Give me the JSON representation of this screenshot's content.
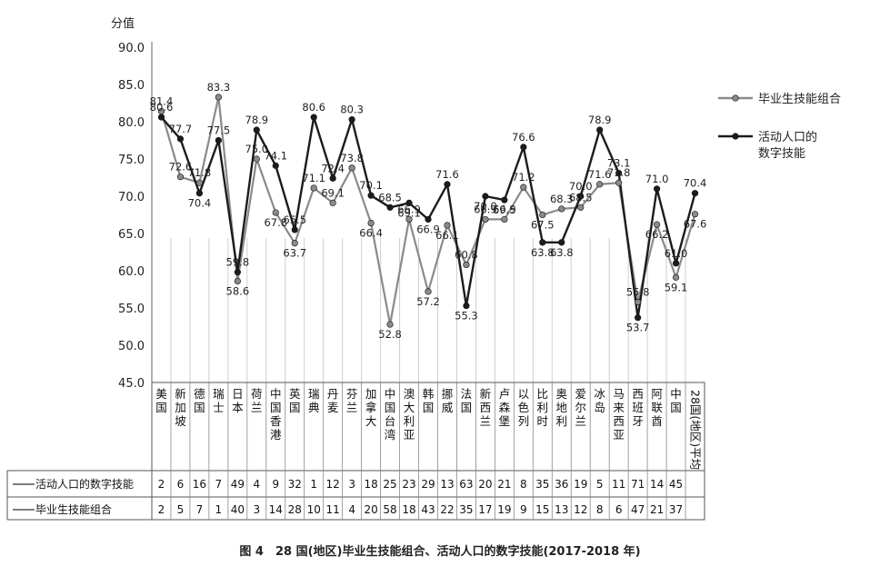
{
  "chart_data": {
    "type": "line",
    "title": "图 4　28 国(地区)毕业生技能组合、活动人口的数字技能(2017-2018 年)",
    "ylabel": "分值",
    "ylim": [
      45,
      90
    ],
    "yticks": [
      "45.0",
      "50.0",
      "55.0",
      "60.0",
      "65.0",
      "70.0",
      "75.0",
      "80.0",
      "85.0",
      "90.0"
    ],
    "categories": [
      "美国",
      "新加坡",
      "德国",
      "瑞士",
      "日本",
      "荷兰",
      "中国香港",
      "英国",
      "瑞典",
      "丹麦",
      "芬兰",
      "加拿大",
      "中国台湾",
      "澳大利亚",
      "韩国",
      "挪威",
      "法国",
      "新西兰",
      "卢森堡",
      "以色列",
      "比利时",
      "奥地利",
      "爱尔兰",
      "冰岛",
      "马来西亚",
      "西班牙",
      "阿联酋",
      "中国",
      "28国(地区)平均"
    ],
    "series": [
      {
        "name": "毕业生技能组合",
        "color": "#8a8a8a",
        "values": [
          81.4,
          72.6,
          71.8,
          83.3,
          58.6,
          75.0,
          67.8,
          63.7,
          71.1,
          69.1,
          73.8,
          66.4,
          52.8,
          66.9,
          57.2,
          66.1,
          60.8,
          66.9,
          66.9,
          71.2,
          67.5,
          68.3,
          68.5,
          71.6,
          71.8,
          55.8,
          66.2,
          59.1,
          67.6
        ],
        "labels": [
          "81.4",
          "72.6",
          "71.8",
          "83.3",
          "58.6",
          "75.0",
          "67.8",
          "63.7",
          "71.1",
          "69.1",
          "73.8",
          "66.4",
          "52.8",
          "66.9",
          "57.2",
          "66.1",
          "60.8",
          "66.9",
          "66.9",
          "71.2",
          "67.5",
          "68.3",
          "68.5",
          "71.6",
          "71.8",
          "55.8",
          "66.2",
          "59.1",
          "67.6"
        ]
      },
      {
        "name": "活动人口的数字技能",
        "color": "#1c1c1c",
        "values": [
          80.6,
          77.7,
          70.4,
          77.5,
          59.8,
          78.9,
          74.1,
          65.5,
          80.6,
          72.4,
          80.3,
          70.1,
          68.5,
          69.1,
          66.9,
          71.6,
          55.3,
          70.0,
          69.5,
          76.6,
          63.8,
          63.8,
          70.0,
          78.9,
          73.1,
          53.7,
          71.0,
          61.0,
          70.4
        ],
        "labels": [
          "80.6",
          "77.7",
          "70.4",
          "77.5",
          "59.8",
          "78.9",
          "74.1",
          "65.5",
          "80.6",
          "72.4",
          "80.3",
          "70.1",
          "68.5",
          "69.1",
          "66.9",
          "71.6",
          "55.3",
          "70.0",
          "69.5",
          "76.6",
          "63.8",
          "63.8",
          "70.0",
          "78.9",
          "73.1",
          "53.7",
          "71.0",
          "61.0",
          "70.4"
        ]
      }
    ],
    "legend": [
      {
        "label": "毕业生技能组合",
        "color": "#8a8a8a"
      },
      {
        "label": "活动人口的\n数字技能",
        "color": "#1c1c1c"
      }
    ],
    "rank_table": {
      "rows": [
        {
          "label": "活动人口的数字技能",
          "values": [
            "2",
            "6",
            "16",
            "7",
            "49",
            "4",
            "9",
            "32",
            "1",
            "12",
            "3",
            "18",
            "25",
            "23",
            "29",
            "13",
            "63",
            "20",
            "21",
            "8",
            "35",
            "36",
            "19",
            "5",
            "11",
            "71",
            "14",
            "45",
            ""
          ]
        },
        {
          "label": "毕业生技能组合",
          "values": [
            "2",
            "5",
            "7",
            "1",
            "40",
            "3",
            "14",
            "28",
            "10",
            "11",
            "4",
            "20",
            "58",
            "18",
            "43",
            "22",
            "35",
            "17",
            "19",
            "9",
            "15",
            "13",
            "12",
            "8",
            "6",
            "47",
            "21",
            "37",
            ""
          ]
        }
      ]
    }
  }
}
